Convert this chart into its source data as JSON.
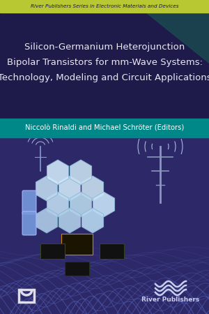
{
  "top_bar_color": "#b8c832",
  "top_bar_text": "River Publishers Series in Electronic Materials and Devices",
  "top_bar_text_color": "#1a1a2e",
  "title_bg_color": "#1e1b4b",
  "title_line1": "Silicon-Germanium Heterojunction",
  "title_line2": "Bipolar Transistors for mm-Wave Systems:",
  "title_line3": "Technology, Modeling and Circuit Applications",
  "title_color": "#e8e8f5",
  "author_bar_color": "#008888",
  "author_text": "Niccolò Rinaldi and Michael Schröter (Editors)",
  "author_text_color": "#ffffff",
  "main_bg_color": "#2d2868",
  "bottom_text": "River Publishers",
  "bottom_text_color": "#c8cce8",
  "fig_width": 3.0,
  "fig_height": 4.5,
  "dpi": 100
}
